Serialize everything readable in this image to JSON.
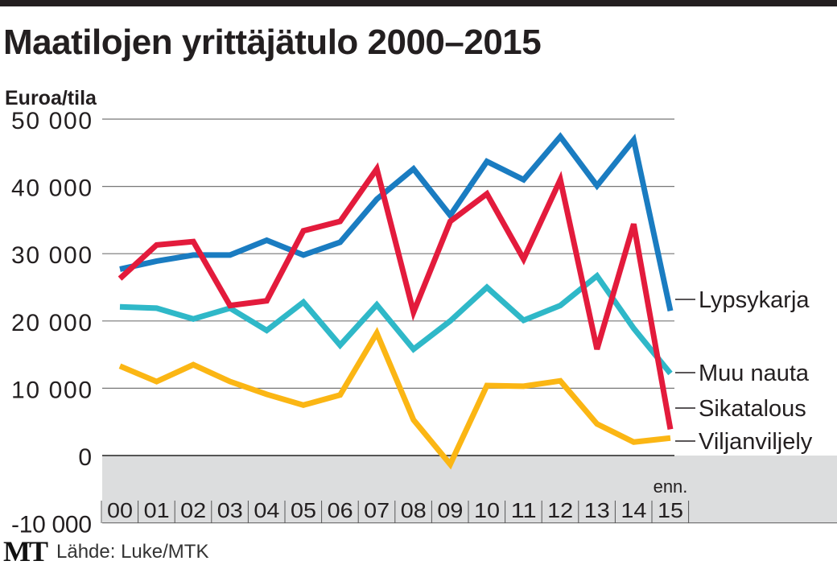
{
  "chart_data": {
    "type": "line",
    "title": "Maatilojen yrittäjätulo 2000–2015",
    "ylabel": "Euroa/tila",
    "ylim": [
      -10000,
      50000
    ],
    "yticks": [
      50000,
      40000,
      30000,
      20000,
      10000,
      0,
      -10000
    ],
    "ytick_labels": [
      "50 000",
      "40 000",
      "30 000",
      "20 000",
      "10 000",
      "0",
      "-10 000"
    ],
    "categories": [
      "00",
      "01",
      "02",
      "03",
      "04",
      "05",
      "06",
      "07",
      "08",
      "09",
      "10",
      "11",
      "12",
      "13",
      "14",
      "15"
    ],
    "x_annotation": "enn.",
    "grid": true,
    "legend": "right (line-end labels)",
    "series": [
      {
        "name": "Lypsykarja",
        "color": "#1a7cc1",
        "values": [
          27700,
          28900,
          29800,
          29800,
          32000,
          29800,
          31700,
          38100,
          42600,
          35700,
          43700,
          41000,
          47400,
          40100,
          46900,
          21500
        ]
      },
      {
        "name": "Muu nauta",
        "color": "#2fb8c8",
        "values": [
          22100,
          21900,
          20300,
          21900,
          18600,
          22800,
          16400,
          22400,
          15800,
          20000,
          25000,
          20100,
          22300,
          26700,
          18900,
          12200
        ]
      },
      {
        "name": "Sikatalous",
        "color": "#e31b3c",
        "values": [
          26300,
          31300,
          31800,
          22300,
          23000,
          33400,
          34800,
          42600,
          21300,
          34800,
          38900,
          29200,
          41000,
          15800,
          34400,
          3900
        ]
      },
      {
        "name": "Viljanviljely",
        "color": "#fbb614",
        "values": [
          13300,
          11000,
          13500,
          11000,
          9100,
          7500,
          9000,
          18200,
          5300,
          -1300,
          10400,
          10300,
          11100,
          4700,
          2000,
          2600
        ]
      }
    ]
  },
  "footer": {
    "logo": "MT",
    "source": "Lähde: Luke/MTK"
  }
}
